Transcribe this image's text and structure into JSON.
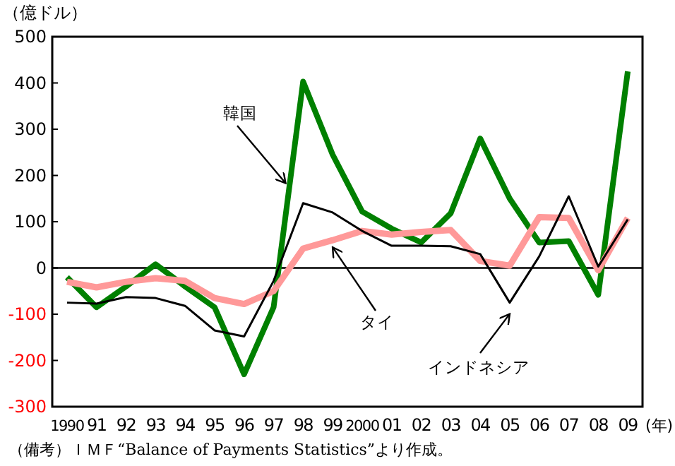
{
  "chart_data": {
    "type": "line",
    "ylabel": "（億ドル）",
    "xlabel": "(年)",
    "categories": [
      "1990",
      "91",
      "92",
      "93",
      "94",
      "95",
      "96",
      "97",
      "98",
      "99",
      "2000",
      "01",
      "02",
      "03",
      "04",
      "05",
      "06",
      "07",
      "08",
      "09"
    ],
    "ylim": [
      -300,
      500
    ],
    "yticks": [
      -300,
      -200,
      -100,
      0,
      100,
      200,
      300,
      400,
      500
    ],
    "ref_lines": [
      {
        "axis": "y",
        "value": 0,
        "color": "#000000"
      }
    ],
    "series": [
      {
        "name": "韓国",
        "color": "#008000",
        "values": [
          -20,
          -85,
          -40,
          8,
          -40,
          -85,
          -230,
          -85,
          403,
          245,
          122,
          85,
          55,
          118,
          280,
          150,
          55,
          58,
          -58,
          425
        ]
      },
      {
        "name": "タイ",
        "color": "#ff9999",
        "values": [
          -30,
          -42,
          -30,
          -22,
          -28,
          -65,
          -78,
          -50,
          42,
          60,
          80,
          72,
          78,
          82,
          15,
          5,
          110,
          108,
          -5,
          108
        ]
      },
      {
        "name": "インドネシア",
        "color": "#000000",
        "values": [
          -75,
          -77,
          -63,
          -65,
          -82,
          -135,
          -148,
          -28,
          140,
          120,
          80,
          48,
          48,
          47,
          30,
          -75,
          25,
          155,
          3,
          105
        ]
      }
    ],
    "annotations": [
      "（備考）ＩＭＦ“Balance of Payments Statistics”より作成。"
    ]
  }
}
